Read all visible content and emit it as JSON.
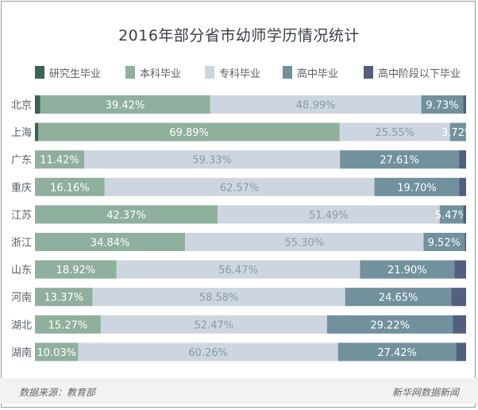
{
  "chart_data": {
    "type": "bar",
    "orientation": "horizontal",
    "stacked": true,
    "title": "2016年部分省市幼师学历情况统计",
    "categories": [
      "北京",
      "上海",
      "广东",
      "重庆",
      "江苏",
      "浙江",
      "山东",
      "河南",
      "湖北",
      "湖南"
    ],
    "series": [
      {
        "name": "研究生毕业",
        "color": "#3a6352",
        "values": [
          1.2,
          0.8,
          0.0,
          0.0,
          0.0,
          0.0,
          0.0,
          0.0,
          0.0,
          0.0
        ]
      },
      {
        "name": "本科毕业",
        "color": "#8fb09c",
        "values": [
          39.42,
          69.89,
          11.42,
          16.16,
          42.37,
          34.84,
          18.92,
          13.37,
          15.27,
          10.03
        ]
      },
      {
        "name": "专科毕业",
        "color": "#cdd6e0",
        "values": [
          48.99,
          25.55,
          59.33,
          62.57,
          51.49,
          55.3,
          56.47,
          58.58,
          52.47,
          60.26
        ]
      },
      {
        "name": "高中毕业",
        "color": "#71919d",
        "values": [
          9.73,
          3.72,
          27.61,
          19.7,
          5.47,
          9.52,
          21.9,
          24.65,
          29.22,
          27.42
        ]
      },
      {
        "name": "高中阶段以下毕业",
        "color": "#525f7e",
        "values": [
          0.66,
          0.04,
          1.64,
          1.57,
          0.67,
          0.34,
          2.71,
          3.4,
          3.04,
          2.29
        ]
      }
    ],
    "labels": [
      [
        "",
        "39.42%",
        "48.99%",
        "9.73%",
        ""
      ],
      [
        "",
        "69.89%",
        "25.55%",
        "3.72%",
        ""
      ],
      [
        "",
        "11.42%",
        "59.33%",
        "27.61%",
        ""
      ],
      [
        "",
        "16.16%",
        "62.57%",
        "19.70%",
        ""
      ],
      [
        "",
        "42.37%",
        "51.49%",
        "5.47%",
        ""
      ],
      [
        "",
        "34.84%",
        "55.30%",
        "9.52%",
        ""
      ],
      [
        "",
        "18.92%",
        "56.47%",
        "21.90%",
        ""
      ],
      [
        "",
        "13.37%",
        "58.58%",
        "24.65%",
        ""
      ],
      [
        "",
        "15.27%",
        "52.47%",
        "29.22%",
        ""
      ],
      [
        "",
        "10.03%",
        "60.26%",
        "27.42%",
        ""
      ]
    ],
    "xlim": [
      0,
      100
    ]
  },
  "footer": {
    "source": "数据来源：教育部",
    "credit": "新华网数据新闻"
  }
}
